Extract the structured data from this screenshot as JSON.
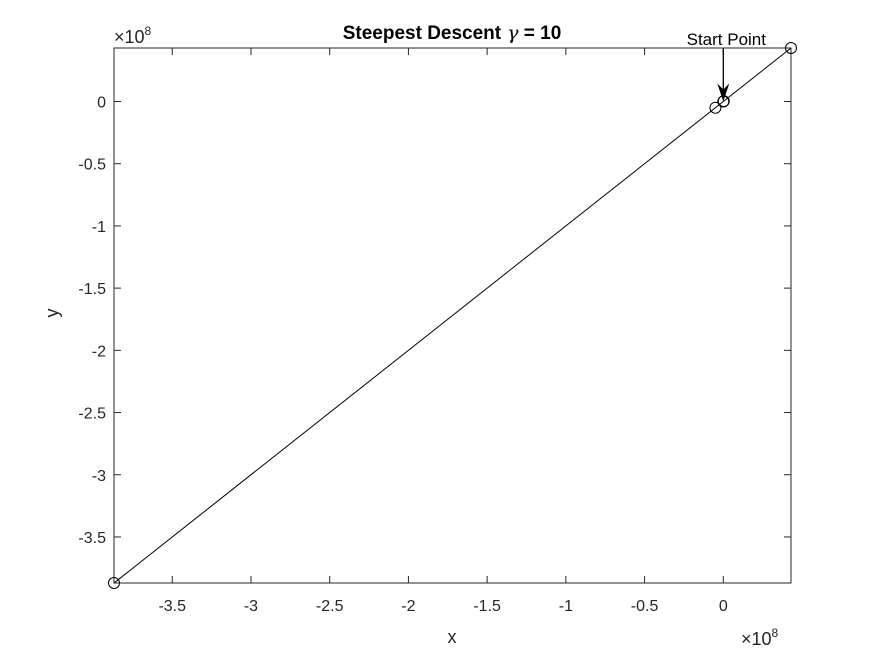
{
  "chart_data": {
    "type": "line",
    "title_main": "Steepest Descent",
    "title_symbol": "γ",
    "title_suffix": " = 10",
    "xlabel": "x",
    "ylabel": "y",
    "x_exponent_base": "×10",
    "x_exponent_power": "8",
    "y_exponent_base": "×10",
    "y_exponent_power": "8",
    "xlim": [
      -3.87,
      0.43
    ],
    "ylim": [
      -3.87,
      0.43
    ],
    "xticks": [
      -3.5,
      -3,
      -2.5,
      -2,
      -1.5,
      -1,
      -0.5,
      0
    ],
    "xtick_labels": [
      "-3.5",
      "-3",
      "-2.5",
      "-2",
      "-1.5",
      "-1",
      "-0.5",
      "0"
    ],
    "yticks": [
      0,
      -0.5,
      -1,
      -1.5,
      -2,
      -2.5,
      -3,
      -3.5
    ],
    "ytick_labels": [
      "0",
      "-0.5",
      "-1",
      "-1.5",
      "-2",
      "-2.5",
      "-3",
      "-3.5"
    ],
    "series": [
      {
        "x": [
          0,
          0.003,
          -0.05,
          0.43,
          -3.87
        ],
        "y": [
          0,
          0.003,
          -0.05,
          0.43,
          -3.87
        ],
        "color": "#000000",
        "marker": "circle"
      }
    ],
    "annotation": {
      "text": "Start Point",
      "point": [
        0,
        0
      ]
    },
    "grid": false
  }
}
